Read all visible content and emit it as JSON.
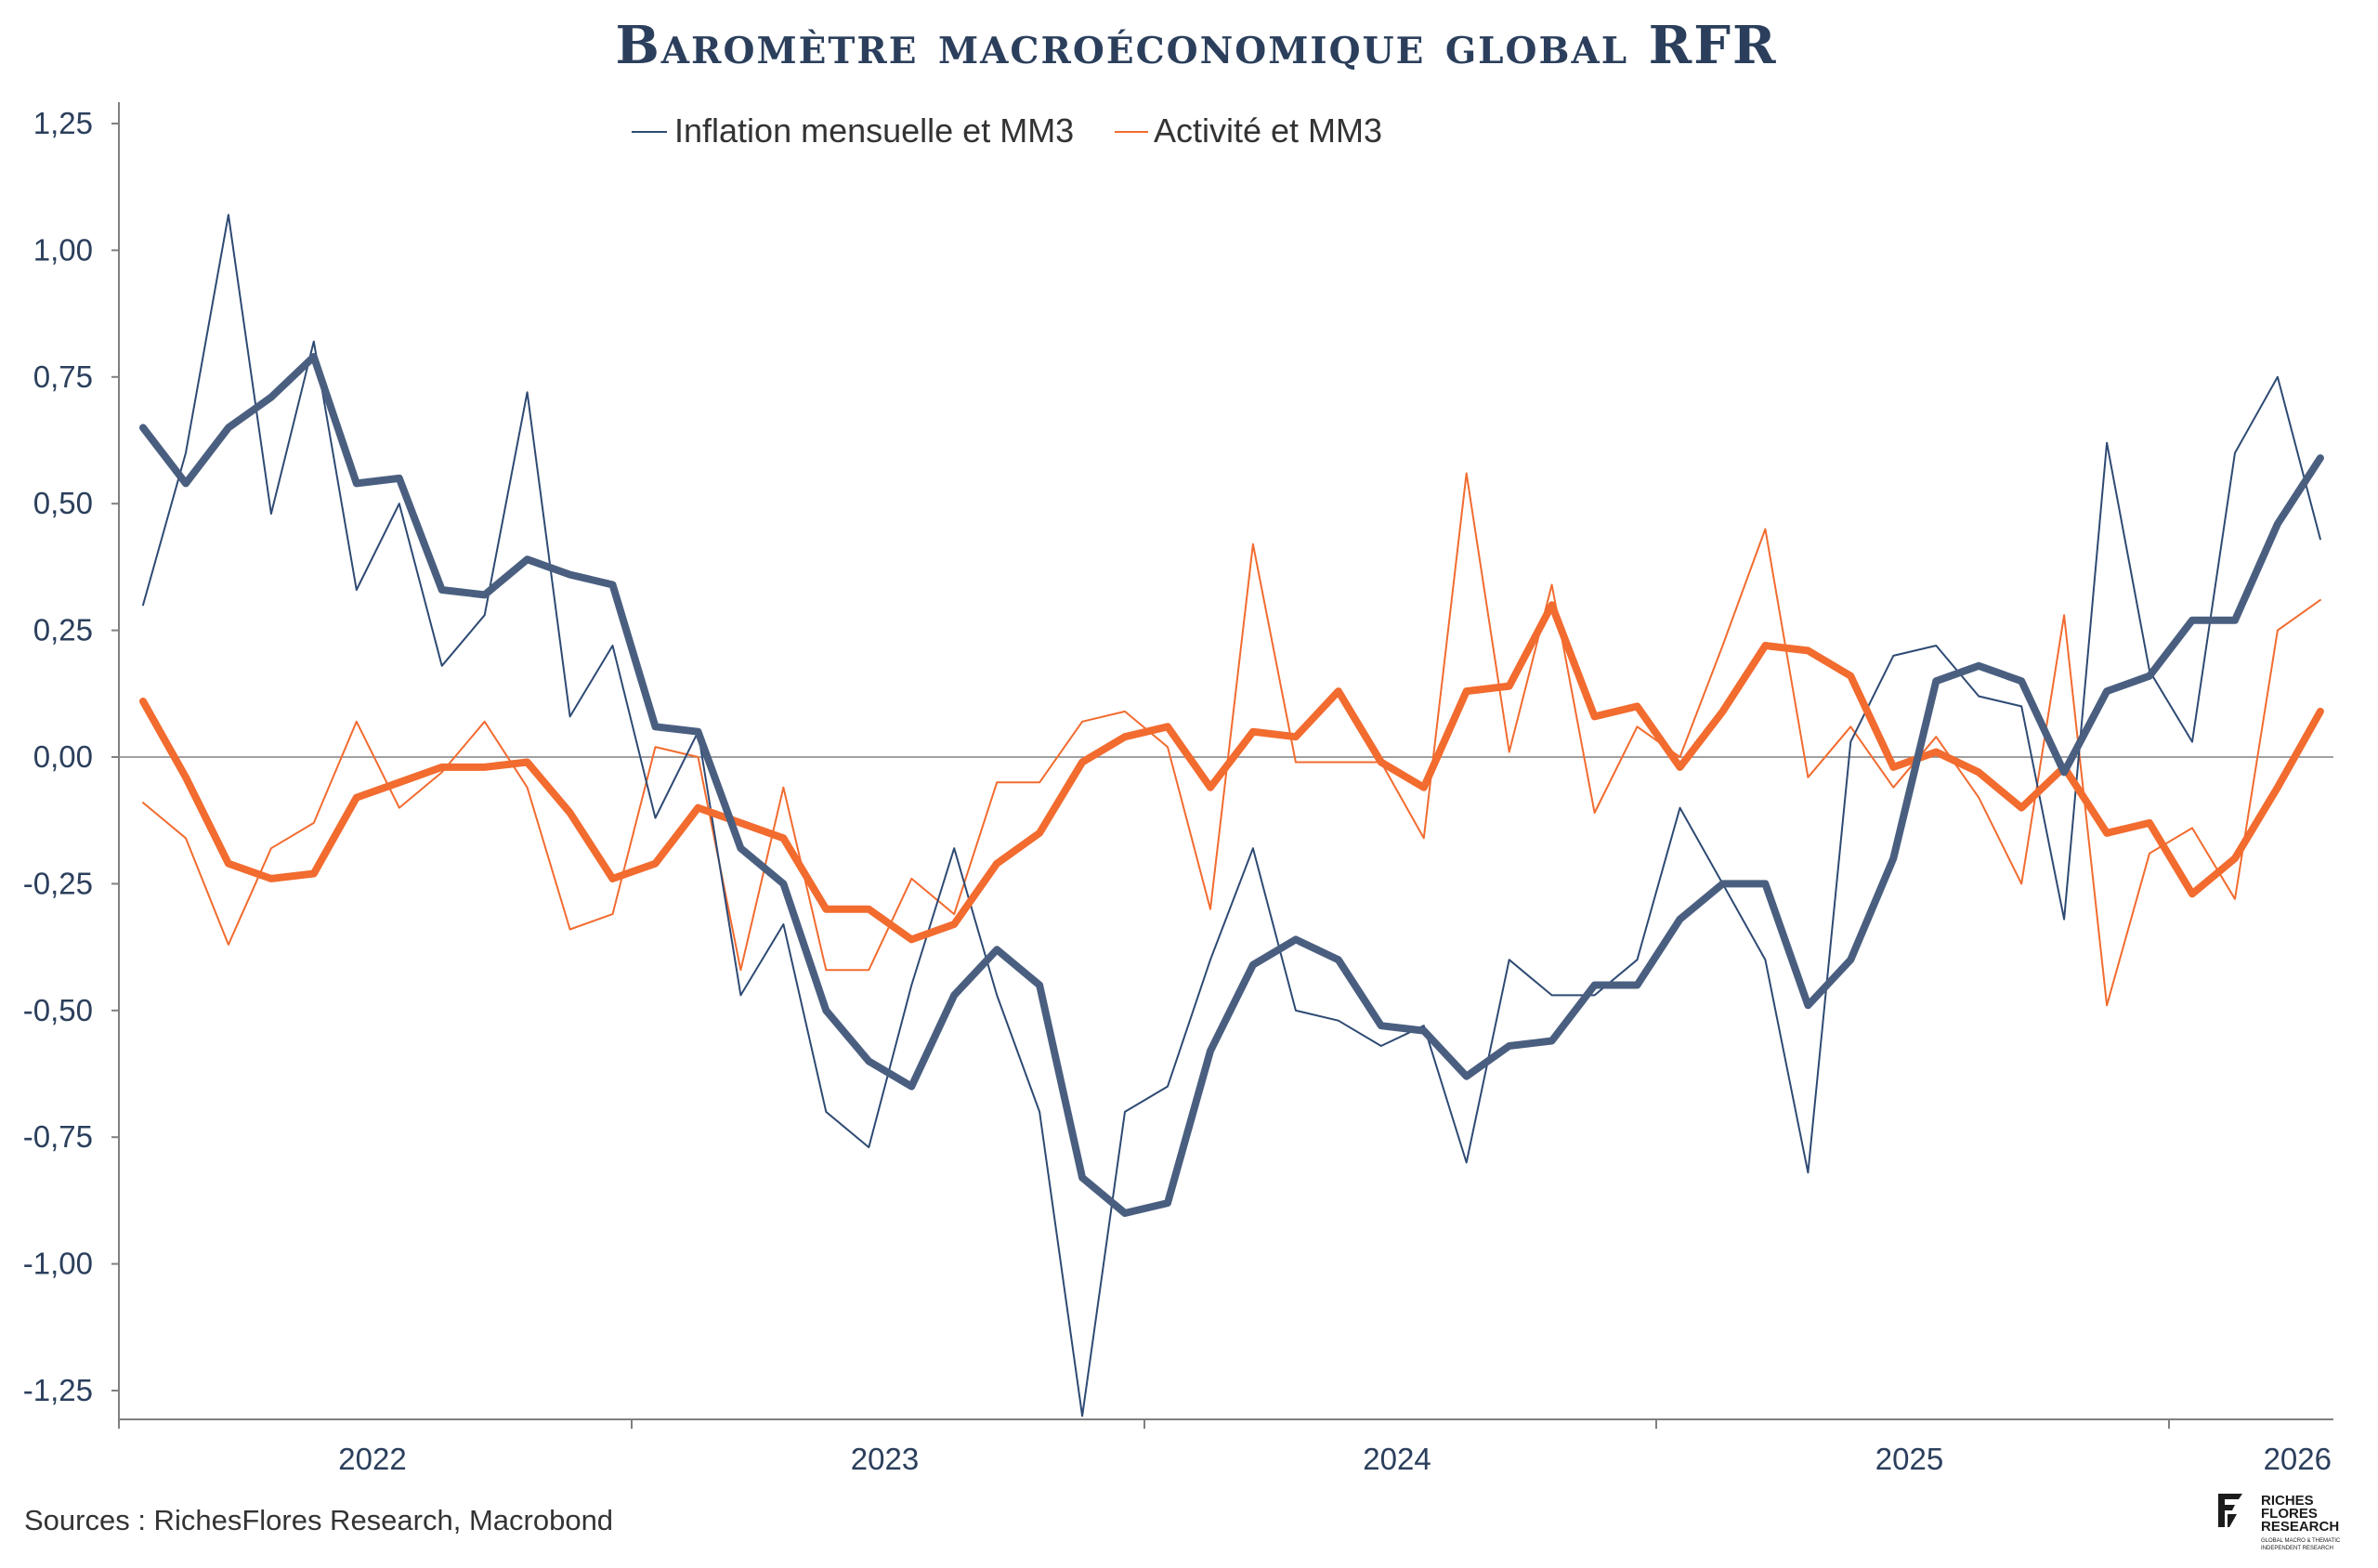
{
  "chart_data": {
    "type": "line",
    "title": "Baromètre macroéconomique global RFR",
    "x_start": "2021-07",
    "x_ticks": [
      "2022",
      "2023",
      "2024",
      "2025",
      "2026"
    ],
    "y_ticks": [
      "1,25",
      "1,00",
      "0,75",
      "0,50",
      "0,25",
      "0,00",
      "-0,25",
      "-0,50",
      "-0,75",
      "-1,00",
      "-1,25"
    ],
    "ylim": [
      -1.3,
      1.3
    ],
    "legend_position": "top-center",
    "colors": {
      "inflation": "#2e4a73",
      "inflation_mm3": "#4a5f80",
      "activite": "#f26b2f",
      "zero_line": "#808080",
      "title": "#2b3f5c"
    },
    "series": [
      {
        "name": "Inflation mensuelle et MM3",
        "key": "inflation_monthly",
        "values": [
          0.3,
          0.6,
          1.07,
          0.48,
          0.82,
          0.33,
          0.5,
          0.18,
          0.28,
          0.72,
          0.08,
          0.22,
          -0.12,
          0.05,
          -0.47,
          -0.33,
          -0.7,
          -0.77,
          -0.45,
          -0.18,
          -0.47,
          -0.7,
          -1.3,
          -0.7,
          -0.65,
          -0.4,
          -0.18,
          -0.5,
          -0.52,
          -0.57,
          -0.53,
          -0.8,
          -0.4,
          -0.47,
          -0.47,
          -0.4,
          -0.1,
          -0.25,
          -0.4,
          -0.82,
          0.03,
          0.2,
          0.22,
          0.12,
          0.1,
          -0.32,
          0.62,
          0.17,
          0.03,
          0.6,
          0.75,
          0.43
        ]
      },
      {
        "name": "Inflation mensuelle et MM3",
        "key": "inflation_mm3",
        "values": [
          0.65,
          0.54,
          0.65,
          0.71,
          0.79,
          0.54,
          0.55,
          0.33,
          0.32,
          0.39,
          0.36,
          0.34,
          0.06,
          0.05,
          -0.18,
          -0.25,
          -0.5,
          -0.6,
          -0.65,
          -0.47,
          -0.38,
          -0.45,
          -0.83,
          -0.9,
          -0.88,
          -0.58,
          -0.41,
          -0.36,
          -0.4,
          -0.53,
          -0.54,
          -0.63,
          -0.57,
          -0.56,
          -0.45,
          -0.45,
          -0.32,
          -0.25,
          -0.25,
          -0.49,
          -0.4,
          -0.2,
          0.15,
          0.18,
          0.15,
          -0.03,
          0.13,
          0.16,
          0.27,
          0.27,
          0.46,
          0.59
        ]
      },
      {
        "name": "Activité et MM3",
        "key": "activite_monthly",
        "values": [
          -0.09,
          -0.16,
          -0.37,
          -0.18,
          -0.13,
          0.07,
          -0.1,
          -0.03,
          0.07,
          -0.06,
          -0.34,
          -0.31,
          0.02,
          0.0,
          -0.42,
          -0.06,
          -0.42,
          -0.42,
          -0.24,
          -0.31,
          -0.05,
          -0.05,
          0.07,
          0.09,
          0.02,
          -0.3,
          0.42,
          -0.01,
          -0.01,
          -0.01,
          -0.16,
          0.56,
          0.01,
          0.34,
          -0.11,
          0.06,
          0.0,
          0.22,
          0.45,
          -0.04,
          0.06,
          -0.06,
          0.04,
          -0.08,
          -0.25,
          0.28,
          -0.49,
          -0.19,
          -0.14,
          -0.28,
          0.25,
          0.31
        ]
      },
      {
        "name": "Activité et MM3",
        "key": "activite_mm3",
        "values": [
          0.11,
          -0.04,
          -0.21,
          -0.24,
          -0.23,
          -0.08,
          -0.05,
          -0.02,
          -0.02,
          -0.01,
          -0.11,
          -0.24,
          -0.21,
          -0.1,
          -0.13,
          -0.16,
          -0.3,
          -0.3,
          -0.36,
          -0.33,
          -0.21,
          -0.15,
          -0.01,
          0.04,
          0.06,
          -0.06,
          0.05,
          0.04,
          0.13,
          -0.01,
          -0.06,
          0.13,
          0.14,
          0.3,
          0.08,
          0.1,
          -0.02,
          0.09,
          0.22,
          0.21,
          0.16,
          -0.02,
          0.01,
          -0.03,
          -0.1,
          -0.02,
          -0.15,
          -0.13,
          -0.27,
          -0.2,
          -0.06,
          0.09
        ]
      }
    ],
    "legend": [
      {
        "label": "Inflation mensuelle et MM3",
        "color": "#2e4a73"
      },
      {
        "label": "Activité et MM3",
        "color": "#f26b2f"
      }
    ]
  },
  "footer": {
    "source": "Sources : RichesFlores Research, Macrobond"
  },
  "logo": {
    "line1": "RICHES",
    "line2": "FLORES",
    "line3": "RESEARCH",
    "tagline1": "GLOBAL MACRO & THEMATIC",
    "tagline2": "INDEPENDENT RESEARCH"
  }
}
